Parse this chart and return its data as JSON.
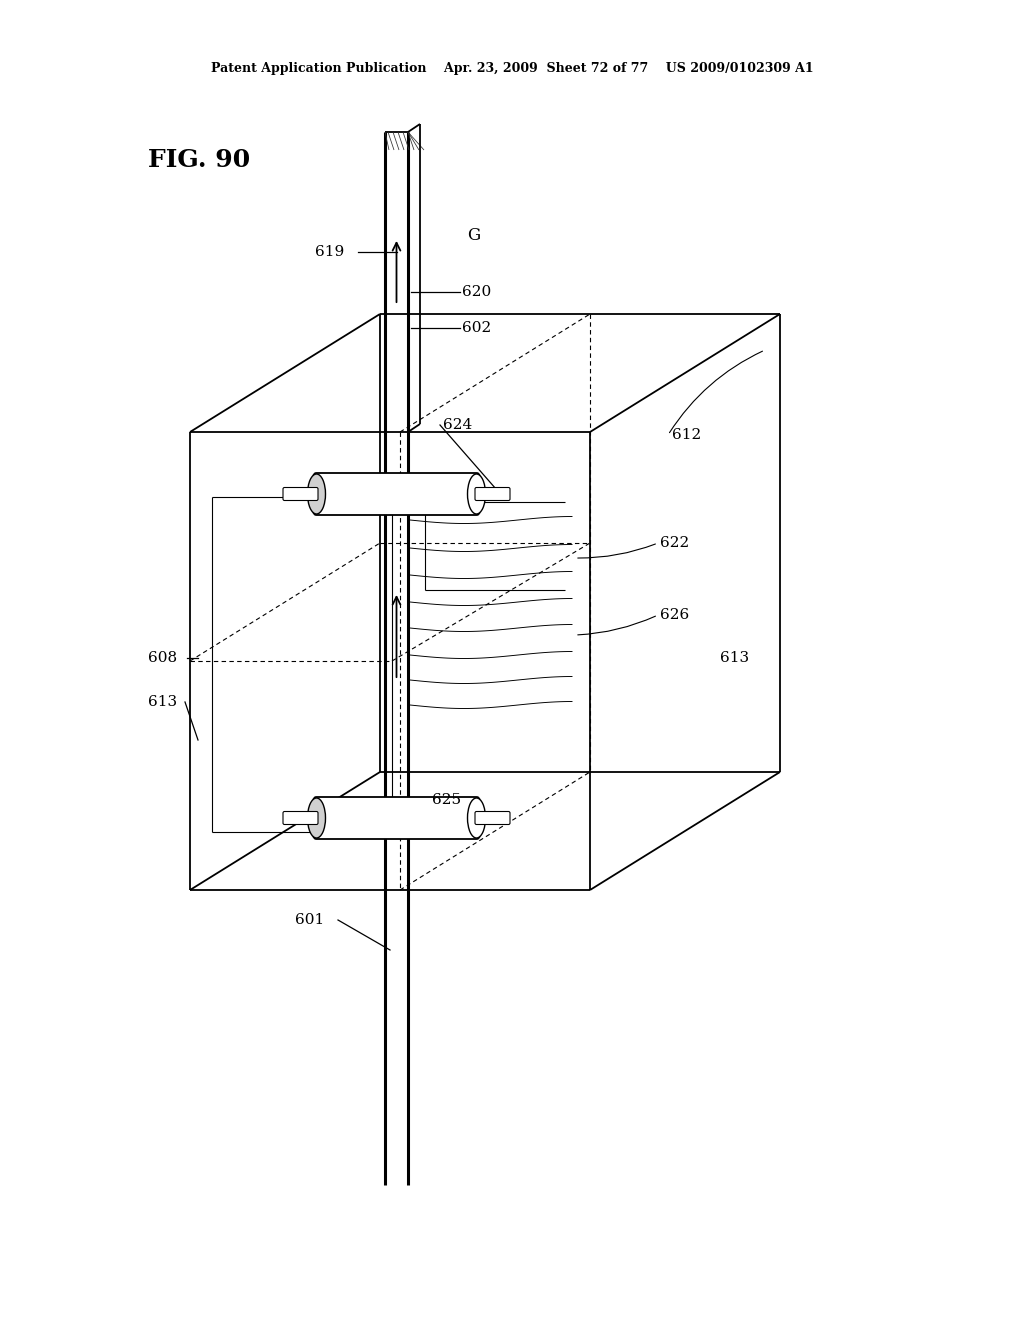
{
  "bg_color": "#ffffff",
  "line_color": "#000000",
  "header_text": "Patent Application Publication    Apr. 23, 2009  Sheet 72 of 77    US 2009/0102309 A1",
  "fig_label": "FIG. 90",
  "lw_thin": 0.8,
  "lw_med": 1.3,
  "lw_thick": 2.2,
  "font_size_header": 9,
  "font_size_fig": 18,
  "font_size_label": 11
}
